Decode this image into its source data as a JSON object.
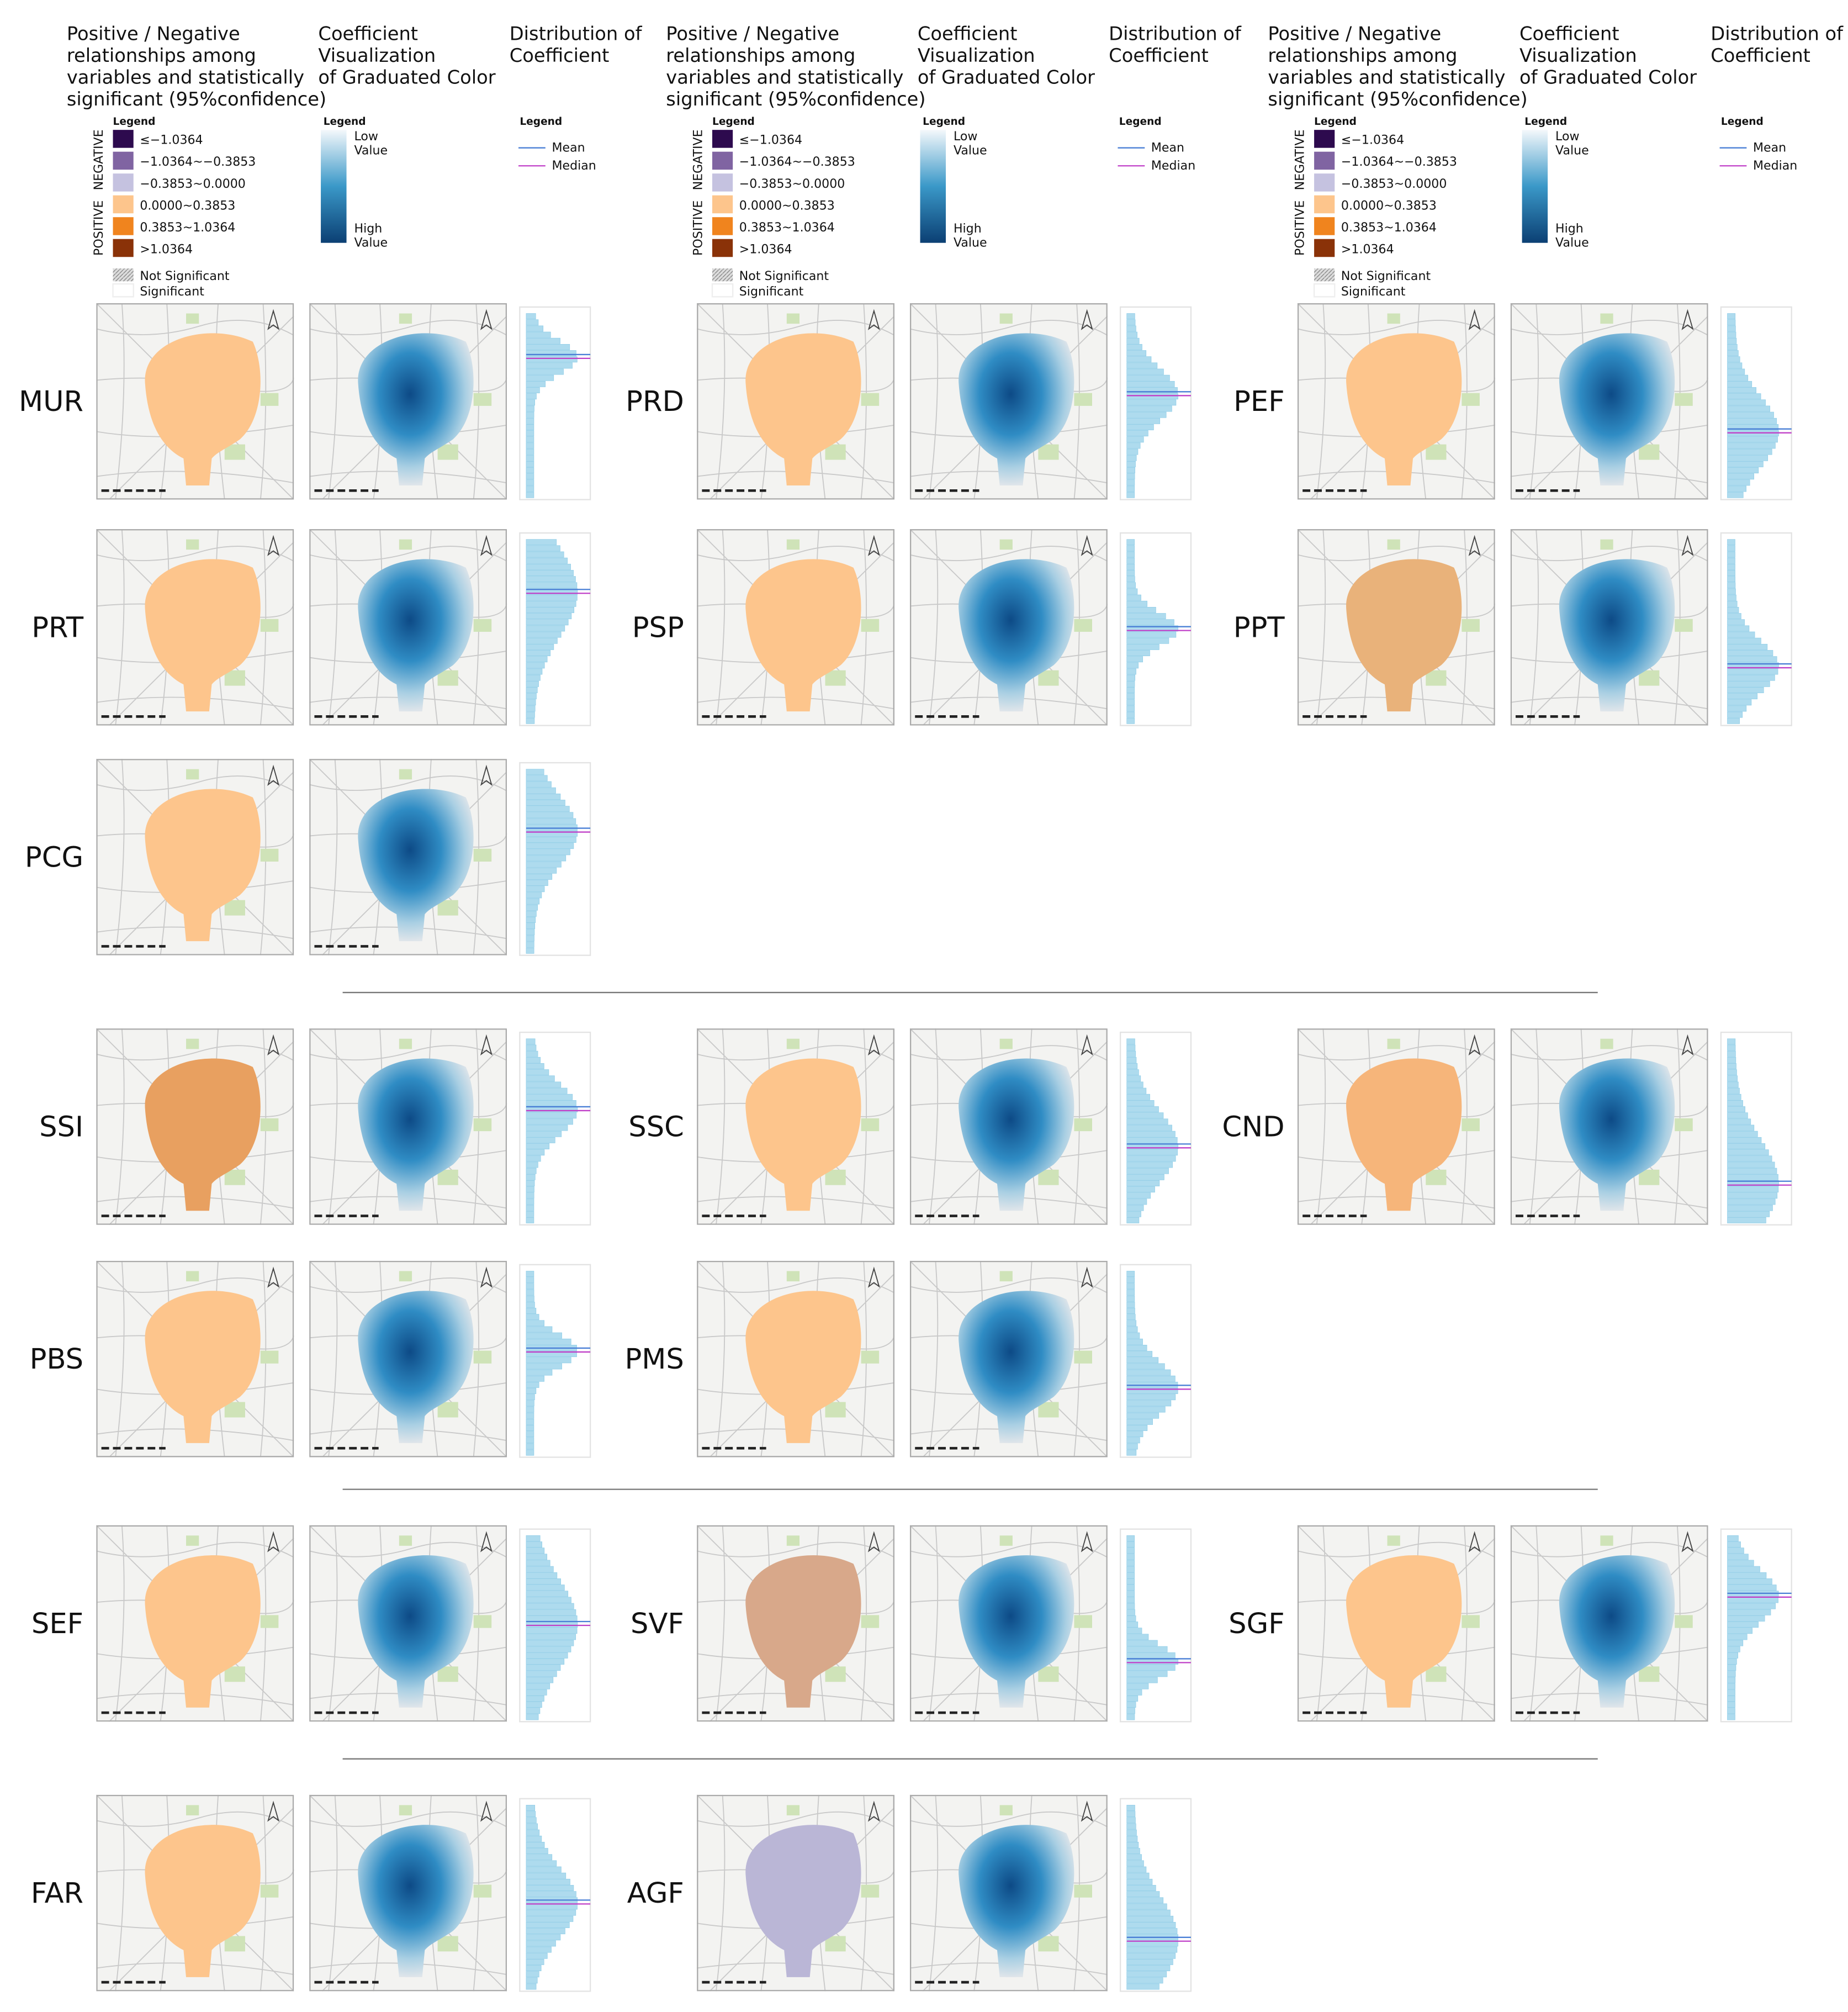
{
  "header": {
    "significance_title": [
      "Positive / Negative",
      "relationships among",
      "variables and statistically",
      "significant (95%confidence)"
    ],
    "coefficient_title": [
      "Coefficient",
      "Visualization",
      "of Graduated Color"
    ],
    "distribution_title": [
      "Distribution of",
      "Coefficient"
    ]
  },
  "significance_legend": {
    "title": "Legend",
    "negative": "NEGATIVE",
    "positive": "POSITIVE",
    "classes": [
      {
        "label": "≤−1.0364",
        "color": "#2d0a4e"
      },
      {
        "label": "−1.0364~−0.3853",
        "color": "#8064a2"
      },
      {
        "label": "−0.3853~0.0000",
        "color": "#c5c2e0"
      },
      {
        "label": "0.0000~0.3853",
        "color": "#fdc58c"
      },
      {
        "label": "0.3853~1.0364",
        "color": "#f0841e"
      },
      {
        "label": ">1.0364",
        "color": "#8a3208"
      }
    ],
    "not_significant": "Not Significant",
    "significant": "Significant"
  },
  "coefficient_legend": {
    "title": "Legend",
    "low": [
      "Low",
      "Value"
    ],
    "high": [
      "High",
      "Value"
    ],
    "low_color": "#f4f8fb",
    "high_color": "#0b3f73"
  },
  "distribution_legend": {
    "title": "Legend",
    "mean": "Mean",
    "median": "Median",
    "mean_color": "#4a7fd6",
    "median_color": "#c040c8"
  },
  "rows": [
    [
      {
        "name": "MUR",
        "color": "#fdc58c"
      },
      {
        "name": "PRD",
        "color": "#fdc58c"
      },
      {
        "name": "PEF",
        "color": "#fdc58c"
      }
    ],
    [
      {
        "name": "PRT",
        "color": "#fdc58c"
      },
      {
        "name": "PSP",
        "color": "#fdc58c"
      },
      {
        "name": "PPT",
        "color": "#e9b27a"
      }
    ],
    [
      {
        "name": "PCG",
        "color": "#fdc58c"
      }
    ],
    [
      {
        "name": "SSI",
        "color": "#e8a060"
      },
      {
        "name": "SSC",
        "color": "#fdc58c"
      },
      {
        "name": "CND",
        "color": "#f6b57a"
      }
    ],
    [
      {
        "name": "PBS",
        "color": "#fdc58c"
      },
      {
        "name": "PMS",
        "color": "#fdc58c"
      }
    ],
    [
      {
        "name": "SEF",
        "color": "#fdc58c"
      },
      {
        "name": "SVF",
        "color": "#d8a88a"
      },
      {
        "name": "SGF",
        "color": "#fdc58c"
      }
    ],
    [
      {
        "name": "FAR",
        "color": "#fdc58c"
      },
      {
        "name": "AGF",
        "color": "#bab6d6"
      }
    ]
  ]
}
